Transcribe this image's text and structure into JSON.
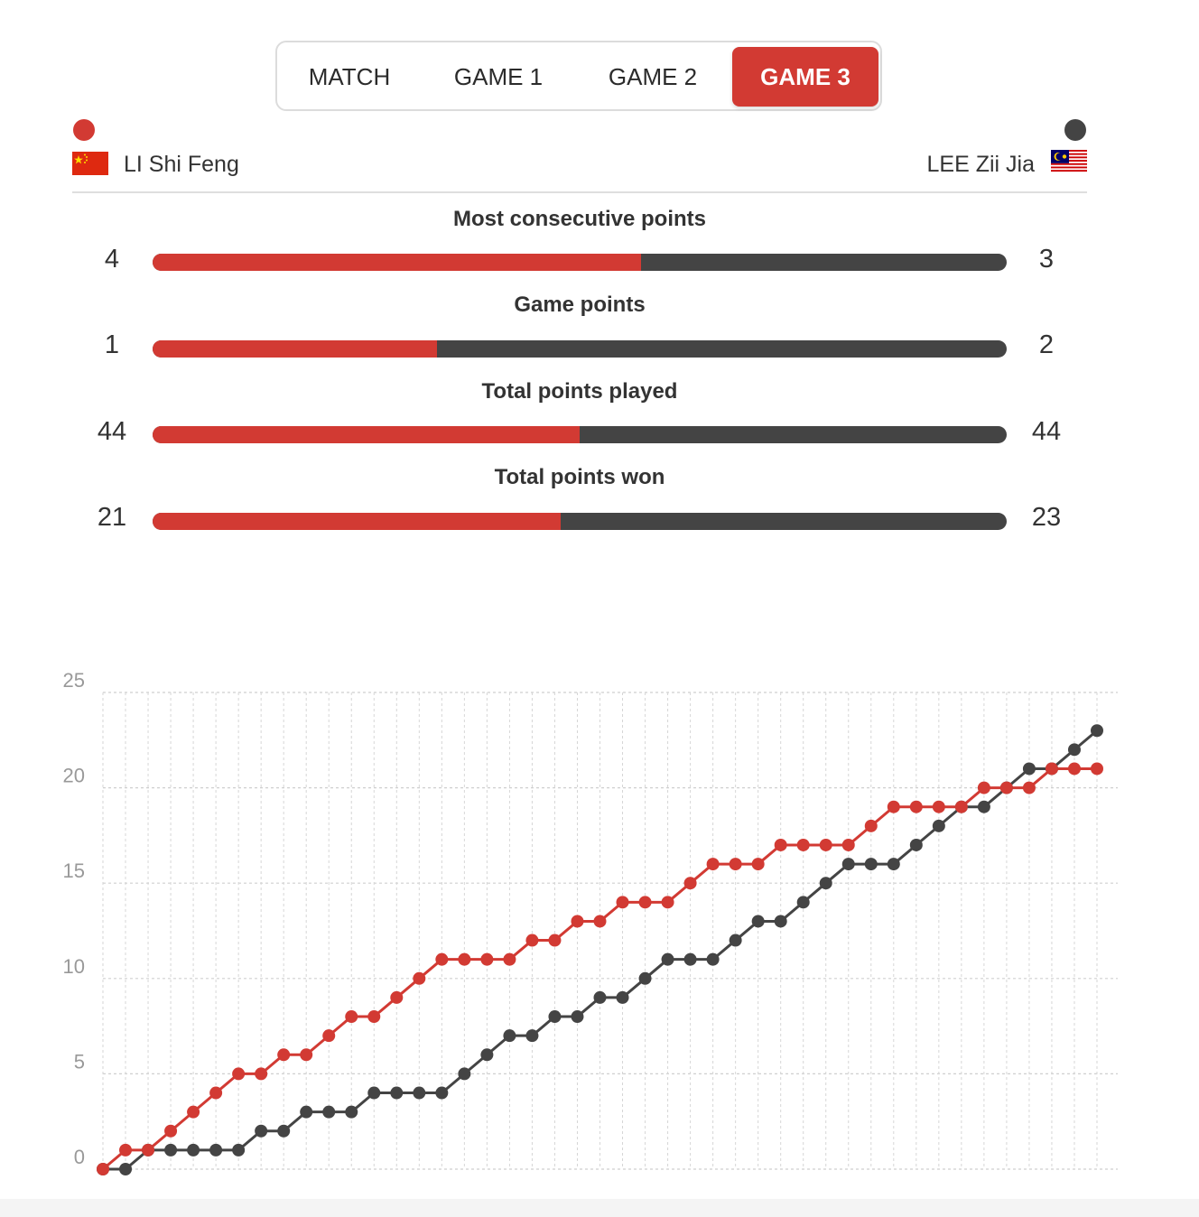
{
  "tabs": [
    {
      "label": "MATCH",
      "active": false
    },
    {
      "label": "GAME 1",
      "active": false
    },
    {
      "label": "GAME 2",
      "active": false
    },
    {
      "label": "GAME 3",
      "active": true
    }
  ],
  "players": {
    "left": {
      "name": "LI Shi Feng",
      "color": "#d23a33",
      "flag": "china-flag-icon"
    },
    "right": {
      "name": "LEE Zii Jia",
      "color": "#444444",
      "flag": "malaysia-flag-icon"
    }
  },
  "stats": [
    {
      "title": "Most consecutive points",
      "left": "4",
      "right": "3",
      "left_value": 4,
      "right_value": 3
    },
    {
      "title": "Game points",
      "left": "1",
      "right": "2",
      "left_value": 1,
      "right_value": 2
    },
    {
      "title": "Total points played",
      "left": "44",
      "right": "44",
      "left_value": 44,
      "right_value": 44
    },
    {
      "title": "Total points won",
      "left": "21",
      "right": "23",
      "left_value": 21,
      "right_value": 23
    }
  ],
  "chart_data": {
    "type": "line",
    "title": "",
    "xlabel": "",
    "ylabel": "",
    "ylim": [
      0,
      25
    ],
    "yticks": [
      0,
      5,
      10,
      15,
      20,
      25
    ],
    "grid": true,
    "x": [
      0,
      1,
      2,
      3,
      4,
      5,
      6,
      7,
      8,
      9,
      10,
      11,
      12,
      13,
      14,
      15,
      16,
      17,
      18,
      19,
      20,
      21,
      22,
      23,
      24,
      25,
      26,
      27,
      28,
      29,
      30,
      31,
      32,
      33,
      34,
      35,
      36,
      37,
      38,
      39,
      40,
      41,
      42,
      43,
      44
    ],
    "series": [
      {
        "color": "#d23a33",
        "values": [
          0,
          1,
          1,
          2,
          3,
          4,
          5,
          5,
          6,
          6,
          7,
          8,
          8,
          9,
          10,
          11,
          11,
          11,
          11,
          12,
          12,
          13,
          13,
          14,
          14,
          14,
          15,
          16,
          16,
          16,
          17,
          17,
          17,
          17,
          18,
          19,
          19,
          19,
          19,
          20,
          20,
          20,
          21,
          21,
          21
        ]
      },
      {
        "color": "#444444",
        "values": [
          0,
          0,
          1,
          1,
          1,
          1,
          1,
          2,
          2,
          3,
          3,
          3,
          4,
          4,
          4,
          4,
          5,
          6,
          7,
          7,
          8,
          8,
          9,
          9,
          10,
          11,
          11,
          11,
          12,
          13,
          13,
          14,
          15,
          16,
          16,
          16,
          17,
          18,
          19,
          19,
          20,
          21,
          21,
          22,
          23
        ]
      }
    ]
  }
}
